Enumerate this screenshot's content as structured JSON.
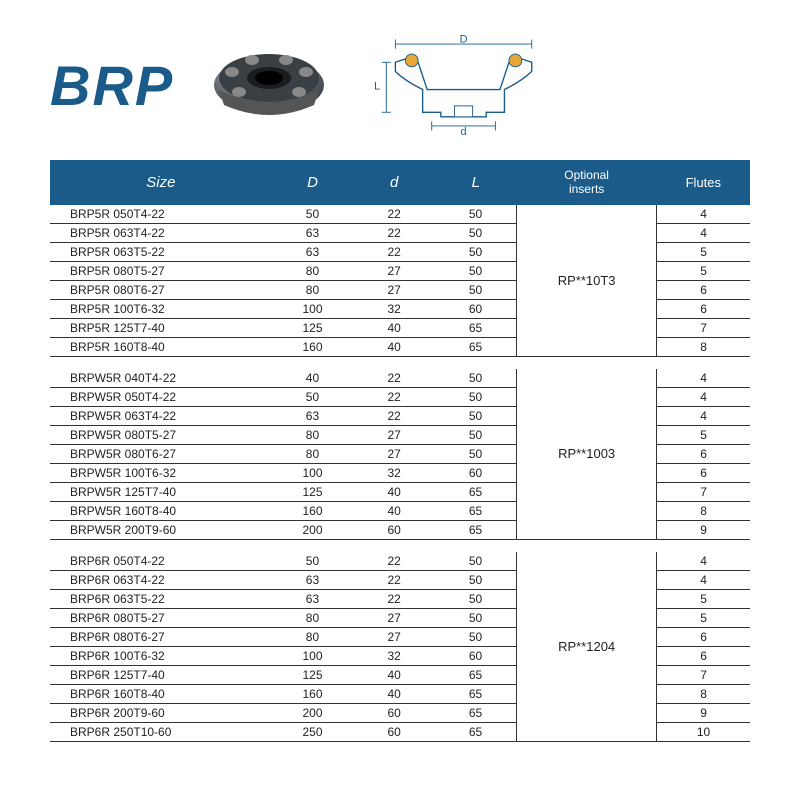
{
  "title": "BRP",
  "colors": {
    "header_bg": "#1a5b8a",
    "header_text": "#ffffff",
    "row_border": "#333333",
    "title_color": "#1a5b8a"
  },
  "headers": {
    "size": "Size",
    "D": "D",
    "d": "d",
    "L": "L",
    "optional": "Optional inserts",
    "flutes": "Flutes"
  },
  "diagram_labels": {
    "D": "D",
    "d": "d",
    "L": "L"
  },
  "groups": [
    {
      "insert": "RP**10T3",
      "rows": [
        {
          "size": "BRP5R 050T4-22",
          "D": "50",
          "d": "22",
          "L": "50",
          "flutes": "4"
        },
        {
          "size": "BRP5R 063T4-22",
          "D": "63",
          "d": "22",
          "L": "50",
          "flutes": "4"
        },
        {
          "size": "BRP5R 063T5-22",
          "D": "63",
          "d": "22",
          "L": "50",
          "flutes": "5"
        },
        {
          "size": "BRP5R 080T5-27",
          "D": "80",
          "d": "27",
          "L": "50",
          "flutes": "5"
        },
        {
          "size": "BRP5R 080T6-27",
          "D": "80",
          "d": "27",
          "L": "50",
          "flutes": "6"
        },
        {
          "size": "BRP5R 100T6-32",
          "D": "100",
          "d": "32",
          "L": "60",
          "flutes": "6"
        },
        {
          "size": "BRP5R 125T7-40",
          "D": "125",
          "d": "40",
          "L": "65",
          "flutes": "7"
        },
        {
          "size": "BRP5R 160T8-40",
          "D": "160",
          "d": "40",
          "L": "65",
          "flutes": "8"
        }
      ]
    },
    {
      "insert": "RP**1003",
      "rows": [
        {
          "size": "BRPW5R 040T4-22",
          "D": "40",
          "d": "22",
          "L": "50",
          "flutes": "4"
        },
        {
          "size": "BRPW5R 050T4-22",
          "D": "50",
          "d": "22",
          "L": "50",
          "flutes": "4"
        },
        {
          "size": "BRPW5R 063T4-22",
          "D": "63",
          "d": "22",
          "L": "50",
          "flutes": "4"
        },
        {
          "size": "BRPW5R 080T5-27",
          "D": "80",
          "d": "27",
          "L": "50",
          "flutes": "5"
        },
        {
          "size": "BRPW5R 080T6-27",
          "D": "80",
          "d": "27",
          "L": "50",
          "flutes": "6"
        },
        {
          "size": "BRPW5R 100T6-32",
          "D": "100",
          "d": "32",
          "L": "60",
          "flutes": "6"
        },
        {
          "size": "BRPW5R 125T7-40",
          "D": "125",
          "d": "40",
          "L": "65",
          "flutes": "7"
        },
        {
          "size": "BRPW5R 160T8-40",
          "D": "160",
          "d": "40",
          "L": "65",
          "flutes": "8"
        },
        {
          "size": "BRPW5R 200T9-60",
          "D": "200",
          "d": "60",
          "L": "65",
          "flutes": "9"
        }
      ]
    },
    {
      "insert": "RP**1204",
      "rows": [
        {
          "size": "BRP6R 050T4-22",
          "D": "50",
          "d": "22",
          "L": "50",
          "flutes": "4"
        },
        {
          "size": "BRP6R 063T4-22",
          "D": "63",
          "d": "22",
          "L": "50",
          "flutes": "4"
        },
        {
          "size": "BRP6R 063T5-22",
          "D": "63",
          "d": "22",
          "L": "50",
          "flutes": "5"
        },
        {
          "size": "BRP6R 080T5-27",
          "D": "80",
          "d": "27",
          "L": "50",
          "flutes": "5"
        },
        {
          "size": "BRP6R 080T6-27",
          "D": "80",
          "d": "27",
          "L": "50",
          "flutes": "6"
        },
        {
          "size": "BRP6R 100T6-32",
          "D": "100",
          "d": "32",
          "L": "60",
          "flutes": "6"
        },
        {
          "size": "BRP6R 125T7-40",
          "D": "125",
          "d": "40",
          "L": "65",
          "flutes": "7"
        },
        {
          "size": "BRP6R 160T8-40",
          "D": "160",
          "d": "40",
          "L": "65",
          "flutes": "8"
        },
        {
          "size": "BRP6R 200T9-60",
          "D": "200",
          "d": "60",
          "L": "65",
          "flutes": "9"
        },
        {
          "size": "BRP6R 250T10-60",
          "D": "250",
          "d": "60",
          "L": "65",
          "flutes": "10"
        }
      ]
    }
  ]
}
